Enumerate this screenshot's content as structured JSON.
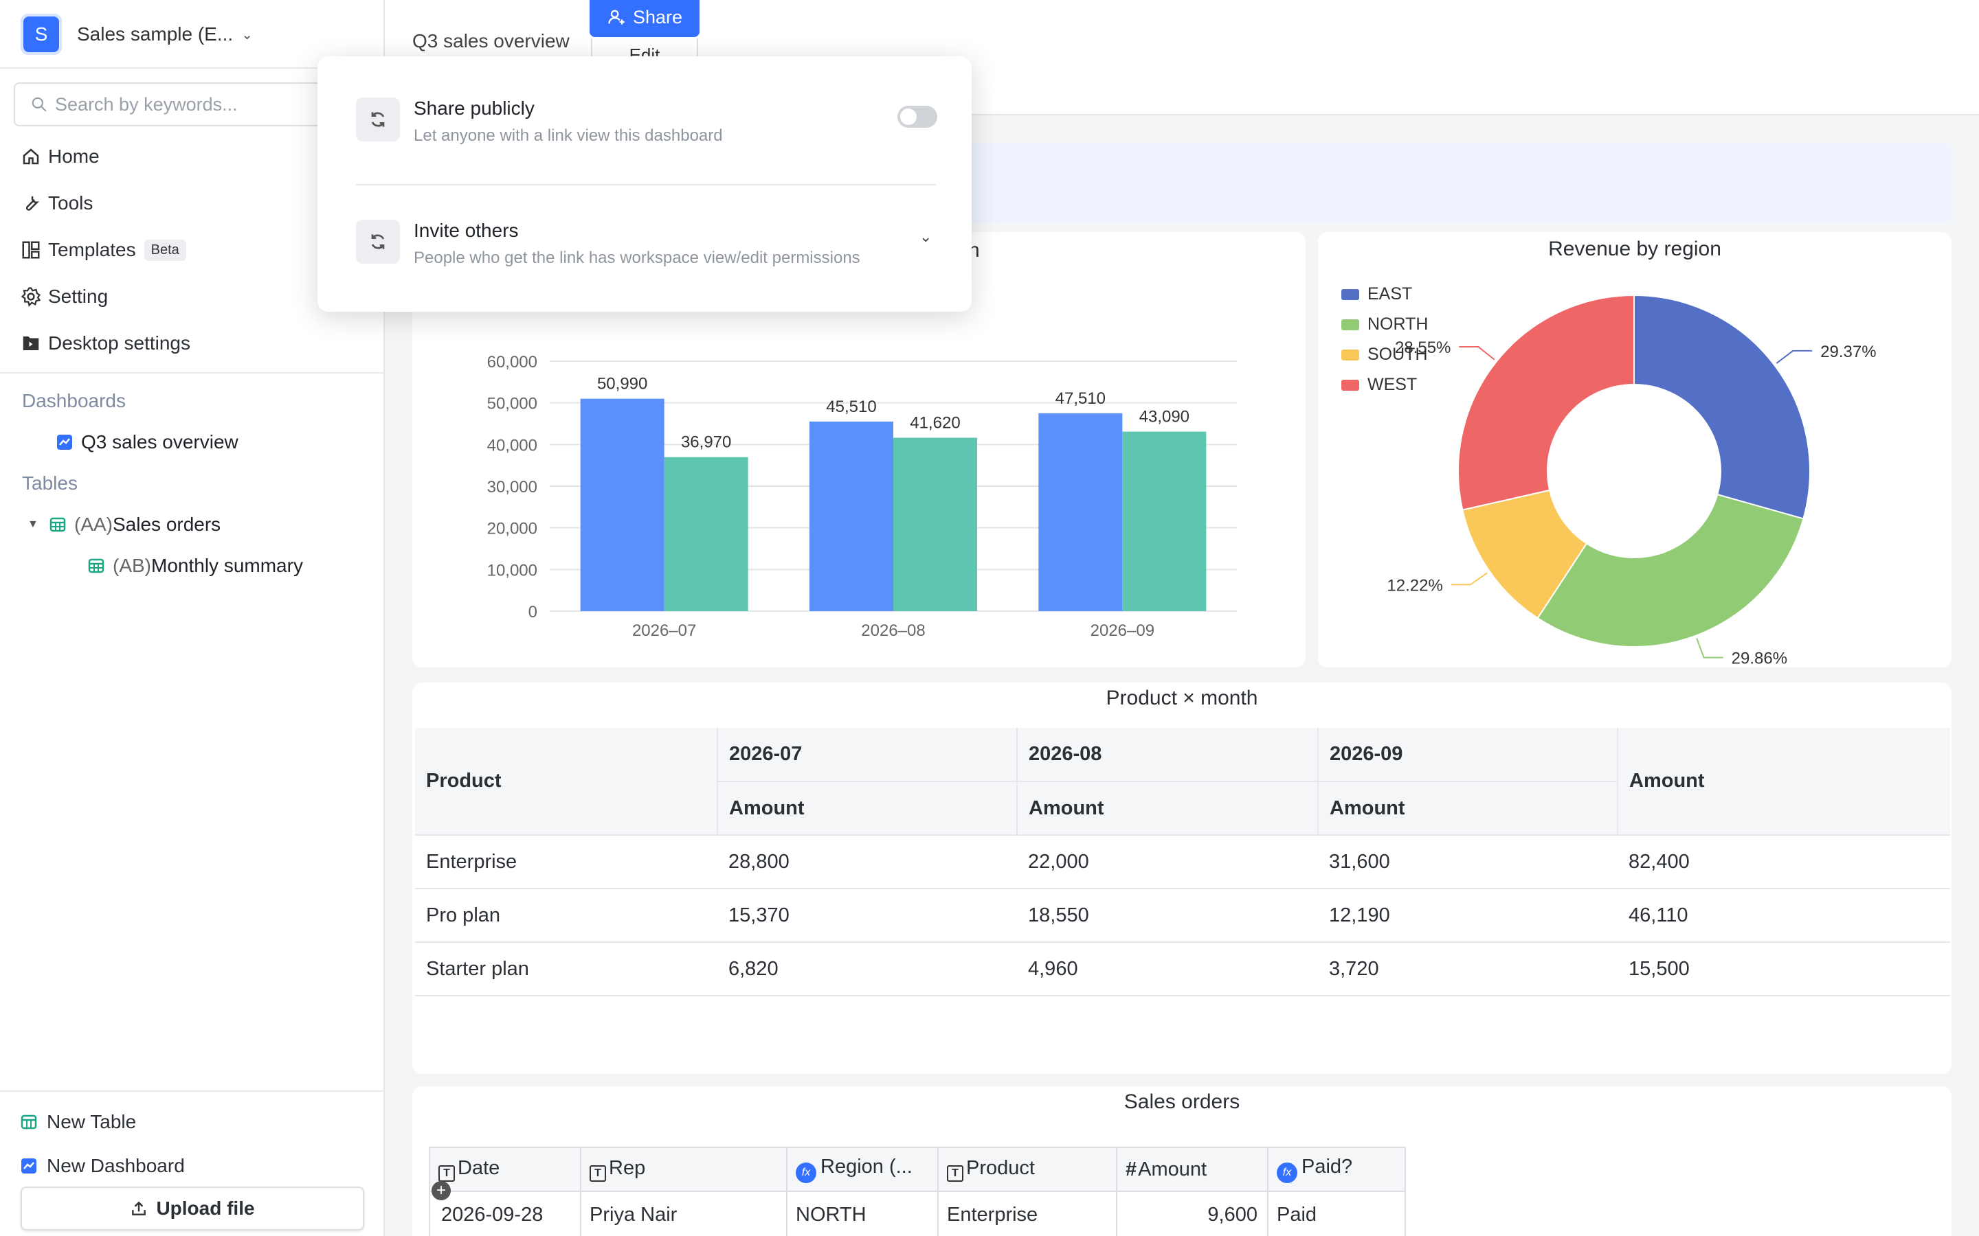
{
  "workspace": {
    "initial": "S",
    "name": "Sales sample (E..."
  },
  "search": {
    "placeholder": "Search by keywords..."
  },
  "nav": [
    {
      "label": "Home",
      "icon": "home-icon"
    },
    {
      "label": "Tools",
      "icon": "wrench-icon"
    },
    {
      "label": "Templates",
      "icon": "template-icon",
      "badge": "Beta"
    },
    {
      "label": "Setting",
      "icon": "gear-icon"
    },
    {
      "label": "Desktop settings",
      "icon": "desktop-settings-icon"
    }
  ],
  "sections": {
    "dashboards": "Dashboards",
    "tables": "Tables"
  },
  "tree": {
    "dashboard": "Q3 sales overview",
    "table1_prefix": "(AA)",
    "table1_name": "Sales orders",
    "table2_prefix": "(AB)",
    "table2_name": "Monthly summary"
  },
  "bottom": {
    "new_table": "New Table",
    "new_dashboard": "New Dashboard",
    "upload": "Upload file"
  },
  "header": {
    "title": "Q3 sales overview",
    "share": "Share",
    "edit": "Edit"
  },
  "popover": {
    "share_title": "Share publicly",
    "share_desc": "Let anyone with a link view this dashboard",
    "share_enabled": false,
    "invite_title": "Invite others",
    "invite_desc": "People who get the link has workspace view/edit permissions"
  },
  "chart_data": [
    {
      "type": "bar",
      "title": "nth",
      "categories": [
        "2026–07",
        "2026–08",
        "2026–09"
      ],
      "series": [
        {
          "values": [
            50990,
            45510,
            47510
          ],
          "color": "#5b8ff9"
        },
        {
          "values": [
            36970,
            41620,
            43090
          ],
          "color": "#5ec6b0"
        }
      ],
      "ylim": [
        0,
        60000
      ],
      "yticks": [
        "0",
        "10,000",
        "20,000",
        "30,000",
        "40,000",
        "50,000",
        "60,000"
      ],
      "data_labels": [
        [
          "50,990",
          "45,510",
          "47,510"
        ],
        [
          "36,970",
          "41,620",
          "43,090"
        ]
      ]
    },
    {
      "type": "pie",
      "title": "Revenue by region",
      "categories": [
        "EAST",
        "NORTH",
        "SOUTH",
        "WEST"
      ],
      "values": [
        29.37,
        29.86,
        12.22,
        28.55
      ],
      "labels": [
        "29.37%",
        "29.86%",
        "12.22%",
        "28.55%"
      ],
      "colors": [
        "#5470c6",
        "#91cc75",
        "#fac858",
        "#ee6666"
      ],
      "legend": "top-left"
    },
    {
      "type": "table",
      "title": "Product × month",
      "header": {
        "product": "Product",
        "months": [
          "2026-07",
          "2026-08",
          "2026-09"
        ],
        "amount": "Amount",
        "total": "Amount"
      },
      "rows": [
        [
          "Enterprise",
          "28,800",
          "22,000",
          "31,600",
          "82,400"
        ],
        [
          "Pro plan",
          "15,370",
          "18,550",
          "12,190",
          "46,110"
        ],
        [
          "Starter plan",
          "6,820",
          "4,960",
          "3,720",
          "15,500"
        ]
      ]
    }
  ],
  "orders": {
    "title": "Sales orders",
    "columns": [
      "Date",
      "Rep",
      "Region (...",
      "Product",
      "Amount",
      "Paid?"
    ],
    "rows": [
      [
        "2026-09-28",
        "Priya Nair",
        "NORTH",
        "Enterprise",
        "9,600",
        "Paid"
      ]
    ]
  }
}
